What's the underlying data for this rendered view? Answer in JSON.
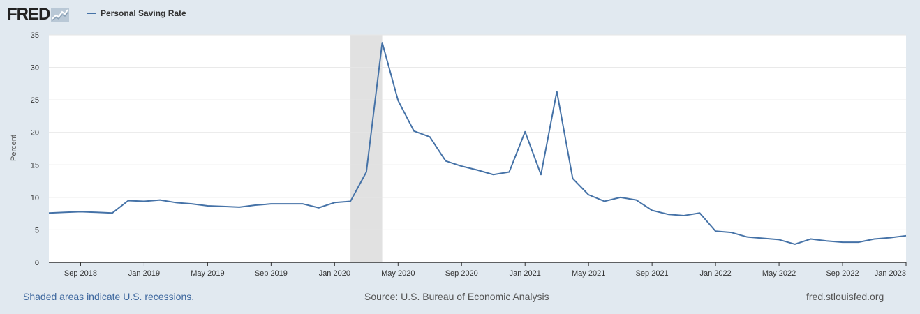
{
  "legend": {
    "series_label": "Personal Saving Rate",
    "line_color": "#4572a7"
  },
  "logo": {
    "text": "FRED"
  },
  "footer": {
    "recession_note": "Shaded areas indicate U.S. recessions.",
    "source": "Source: U.S. Bureau of Economic Analysis",
    "site": "fred.stlouisfed.org"
  },
  "chart_data": {
    "type": "line",
    "title": "Personal Saving Rate",
    "ylabel": "Percent",
    "xlabel": "",
    "ylim": [
      0,
      35
    ],
    "yticks": [
      0,
      5,
      10,
      15,
      20,
      25,
      30,
      35
    ],
    "xlim_month_index": [
      0,
      54
    ],
    "xticks": [
      {
        "label": "Sep 2018",
        "month_index": 2
      },
      {
        "label": "Jan 2019",
        "month_index": 6
      },
      {
        "label": "May 2019",
        "month_index": 10
      },
      {
        "label": "Sep 2019",
        "month_index": 14
      },
      {
        "label": "Jan 2020",
        "month_index": 18
      },
      {
        "label": "May 2020",
        "month_index": 22
      },
      {
        "label": "Sep 2020",
        "month_index": 26
      },
      {
        "label": "Jan 2021",
        "month_index": 30
      },
      {
        "label": "May 2021",
        "month_index": 34
      },
      {
        "label": "Sep 2021",
        "month_index": 38
      },
      {
        "label": "Jan 2022",
        "month_index": 42
      },
      {
        "label": "May 2022",
        "month_index": 46
      },
      {
        "label": "Sep 2022",
        "month_index": 50
      },
      {
        "label": "Jan 2023",
        "month_index": 54
      }
    ],
    "recessions": [
      {
        "start_month_index": 19,
        "end_month_index": 21
      }
    ],
    "series": [
      {
        "name": "Personal Saving Rate",
        "start": "2018-07",
        "values": [
          7.6,
          7.7,
          7.8,
          7.7,
          7.6,
          9.5,
          9.4,
          9.6,
          9.2,
          9.0,
          8.7,
          8.6,
          8.5,
          8.8,
          9.0,
          9.0,
          9.0,
          8.4,
          9.2,
          9.4,
          13.9,
          33.8,
          24.9,
          20.2,
          19.3,
          15.6,
          14.8,
          14.2,
          13.5,
          13.9,
          20.1,
          13.5,
          26.3,
          12.9,
          10.4,
          9.4,
          10.0,
          9.6,
          8.0,
          7.4,
          7.2,
          7.6,
          4.8,
          4.6,
          3.9,
          3.7,
          3.5,
          2.8,
          3.6,
          3.3,
          3.1,
          3.1,
          3.6,
          3.8,
          4.1
        ]
      }
    ]
  }
}
